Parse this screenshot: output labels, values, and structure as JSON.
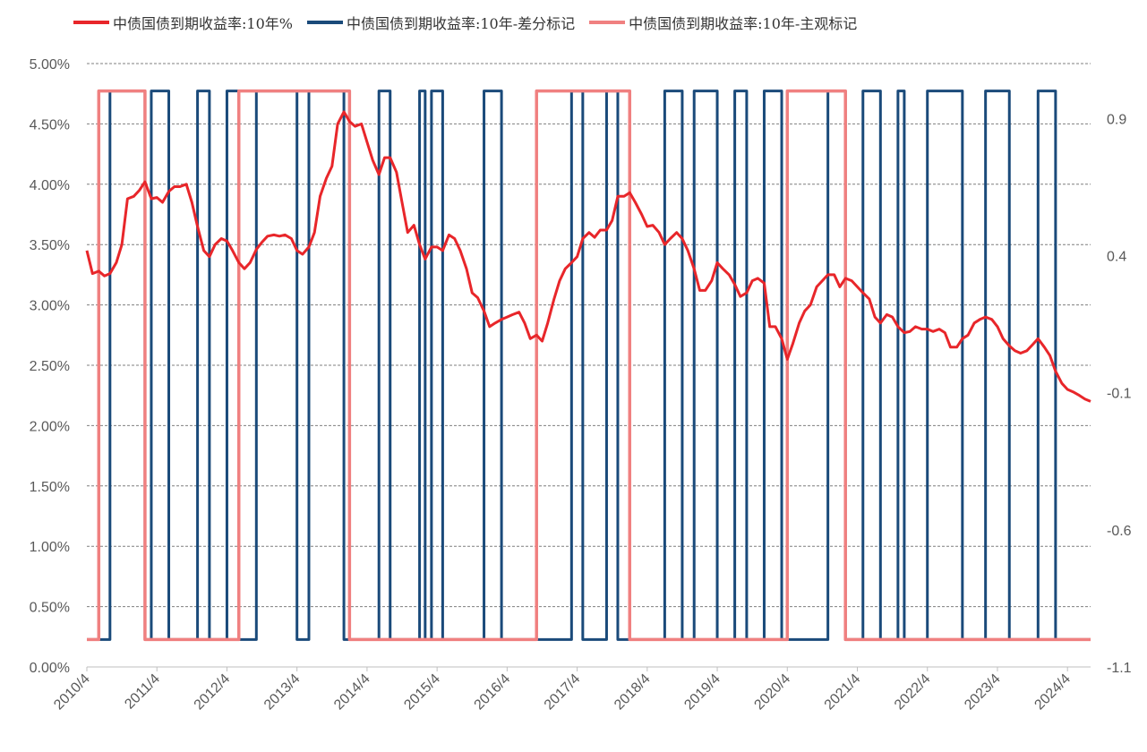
{
  "chart_data": {
    "type": "line",
    "title": "",
    "y_left": {
      "min": 0.0,
      "max": 5.0,
      "step": 0.5,
      "tick_labels": [
        "0.00%",
        "0.50%",
        "1.00%",
        "1.50%",
        "2.00%",
        "2.50%",
        "3.00%",
        "3.50%",
        "4.00%",
        "4.50%",
        "5.00%"
      ]
    },
    "y_right": {
      "min": -1.1,
      "max": 1.1,
      "step": 0.5,
      "tick_labels": [
        "-1.1",
        "-0.6",
        "-0.1",
        "0.4",
        "0.9"
      ]
    },
    "x_range": [
      2010.25,
      2024.58
    ],
    "x_tick_labels": [
      "2010/4",
      "2011/4",
      "2012/4",
      "2013/4",
      "2014/4",
      "2015/4",
      "2016/4",
      "2017/4",
      "2018/4",
      "2019/4",
      "2020/4",
      "2021/4",
      "2022/4",
      "2023/4",
      "2024/4"
    ],
    "series": [
      {
        "name": "中债国债到期收益率:10年%",
        "axis": "left",
        "color": "#e8262a",
        "points": [
          [
            2010.25,
            3.45
          ],
          [
            2010.33,
            3.26
          ],
          [
            2010.42,
            3.28
          ],
          [
            2010.5,
            3.24
          ],
          [
            2010.58,
            3.26
          ],
          [
            2010.67,
            3.35
          ],
          [
            2010.75,
            3.5
          ],
          [
            2010.83,
            3.88
          ],
          [
            2010.92,
            3.9
          ],
          [
            2011.0,
            3.95
          ],
          [
            2011.08,
            4.02
          ],
          [
            2011.17,
            3.88
          ],
          [
            2011.25,
            3.89
          ],
          [
            2011.33,
            3.85
          ],
          [
            2011.42,
            3.94
          ],
          [
            2011.5,
            3.98
          ],
          [
            2011.58,
            3.98
          ],
          [
            2011.67,
            4.0
          ],
          [
            2011.75,
            3.85
          ],
          [
            2011.83,
            3.65
          ],
          [
            2011.92,
            3.45
          ],
          [
            2012.0,
            3.4
          ],
          [
            2012.08,
            3.5
          ],
          [
            2012.17,
            3.55
          ],
          [
            2012.25,
            3.53
          ],
          [
            2012.33,
            3.45
          ],
          [
            2012.42,
            3.35
          ],
          [
            2012.5,
            3.3
          ],
          [
            2012.58,
            3.35
          ],
          [
            2012.67,
            3.46
          ],
          [
            2012.75,
            3.52
          ],
          [
            2012.83,
            3.57
          ],
          [
            2012.92,
            3.58
          ],
          [
            2013.0,
            3.57
          ],
          [
            2013.08,
            3.58
          ],
          [
            2013.17,
            3.55
          ],
          [
            2013.25,
            3.45
          ],
          [
            2013.33,
            3.42
          ],
          [
            2013.42,
            3.48
          ],
          [
            2013.5,
            3.6
          ],
          [
            2013.58,
            3.9
          ],
          [
            2013.67,
            4.05
          ],
          [
            2013.75,
            4.15
          ],
          [
            2013.83,
            4.5
          ],
          [
            2013.92,
            4.6
          ],
          [
            2014.0,
            4.52
          ],
          [
            2014.08,
            4.48
          ],
          [
            2014.17,
            4.5
          ],
          [
            2014.25,
            4.35
          ],
          [
            2014.33,
            4.2
          ],
          [
            2014.42,
            4.08
          ],
          [
            2014.5,
            4.22
          ],
          [
            2014.58,
            4.22
          ],
          [
            2014.67,
            4.1
          ],
          [
            2014.75,
            3.85
          ],
          [
            2014.83,
            3.6
          ],
          [
            2014.92,
            3.66
          ],
          [
            2015.0,
            3.5
          ],
          [
            2015.08,
            3.38
          ],
          [
            2015.17,
            3.48
          ],
          [
            2015.25,
            3.48
          ],
          [
            2015.33,
            3.45
          ],
          [
            2015.42,
            3.58
          ],
          [
            2015.5,
            3.55
          ],
          [
            2015.58,
            3.45
          ],
          [
            2015.67,
            3.3
          ],
          [
            2015.75,
            3.1
          ],
          [
            2015.83,
            3.06
          ],
          [
            2015.92,
            2.95
          ],
          [
            2016.0,
            2.82
          ],
          [
            2016.08,
            2.85
          ],
          [
            2016.17,
            2.88
          ],
          [
            2016.25,
            2.9
          ],
          [
            2016.33,
            2.92
          ],
          [
            2016.42,
            2.94
          ],
          [
            2016.5,
            2.85
          ],
          [
            2016.58,
            2.72
          ],
          [
            2016.67,
            2.75
          ],
          [
            2016.75,
            2.7
          ],
          [
            2016.83,
            2.85
          ],
          [
            2016.92,
            3.05
          ],
          [
            2017.0,
            3.2
          ],
          [
            2017.08,
            3.3
          ],
          [
            2017.17,
            3.35
          ],
          [
            2017.25,
            3.4
          ],
          [
            2017.33,
            3.55
          ],
          [
            2017.42,
            3.6
          ],
          [
            2017.5,
            3.56
          ],
          [
            2017.58,
            3.62
          ],
          [
            2017.67,
            3.62
          ],
          [
            2017.75,
            3.7
          ],
          [
            2017.83,
            3.9
          ],
          [
            2017.92,
            3.9
          ],
          [
            2018.0,
            3.93
          ],
          [
            2018.08,
            3.85
          ],
          [
            2018.17,
            3.75
          ],
          [
            2018.25,
            3.65
          ],
          [
            2018.33,
            3.66
          ],
          [
            2018.42,
            3.6
          ],
          [
            2018.5,
            3.5
          ],
          [
            2018.58,
            3.55
          ],
          [
            2018.67,
            3.6
          ],
          [
            2018.75,
            3.55
          ],
          [
            2018.83,
            3.45
          ],
          [
            2018.92,
            3.3
          ],
          [
            2019.0,
            3.12
          ],
          [
            2019.08,
            3.12
          ],
          [
            2019.17,
            3.2
          ],
          [
            2019.25,
            3.35
          ],
          [
            2019.33,
            3.3
          ],
          [
            2019.42,
            3.25
          ],
          [
            2019.5,
            3.17
          ],
          [
            2019.58,
            3.07
          ],
          [
            2019.67,
            3.1
          ],
          [
            2019.75,
            3.2
          ],
          [
            2019.83,
            3.22
          ],
          [
            2019.92,
            3.18
          ],
          [
            2020.0,
            2.82
          ],
          [
            2020.08,
            2.82
          ],
          [
            2020.17,
            2.72
          ],
          [
            2020.25,
            2.55
          ],
          [
            2020.33,
            2.68
          ],
          [
            2020.42,
            2.85
          ],
          [
            2020.5,
            2.95
          ],
          [
            2020.58,
            3.0
          ],
          [
            2020.67,
            3.15
          ],
          [
            2020.75,
            3.2
          ],
          [
            2020.83,
            3.25
          ],
          [
            2020.92,
            3.25
          ],
          [
            2021.0,
            3.15
          ],
          [
            2021.08,
            3.22
          ],
          [
            2021.17,
            3.2
          ],
          [
            2021.25,
            3.15
          ],
          [
            2021.33,
            3.1
          ],
          [
            2021.42,
            3.05
          ],
          [
            2021.5,
            2.9
          ],
          [
            2021.58,
            2.85
          ],
          [
            2021.67,
            2.92
          ],
          [
            2021.75,
            2.9
          ],
          [
            2021.83,
            2.82
          ],
          [
            2021.92,
            2.77
          ],
          [
            2022.0,
            2.78
          ],
          [
            2022.08,
            2.82
          ],
          [
            2022.17,
            2.8
          ],
          [
            2022.25,
            2.8
          ],
          [
            2022.33,
            2.78
          ],
          [
            2022.42,
            2.8
          ],
          [
            2022.5,
            2.77
          ],
          [
            2022.58,
            2.65
          ],
          [
            2022.67,
            2.65
          ],
          [
            2022.75,
            2.72
          ],
          [
            2022.83,
            2.75
          ],
          [
            2022.92,
            2.85
          ],
          [
            2023.0,
            2.88
          ],
          [
            2023.08,
            2.9
          ],
          [
            2023.17,
            2.88
          ],
          [
            2023.25,
            2.82
          ],
          [
            2023.33,
            2.72
          ],
          [
            2023.42,
            2.66
          ],
          [
            2023.5,
            2.62
          ],
          [
            2023.58,
            2.6
          ],
          [
            2023.67,
            2.62
          ],
          [
            2023.75,
            2.67
          ],
          [
            2023.83,
            2.72
          ],
          [
            2023.92,
            2.65
          ],
          [
            2024.0,
            2.58
          ],
          [
            2024.08,
            2.45
          ],
          [
            2024.17,
            2.35
          ],
          [
            2024.25,
            2.3
          ],
          [
            2024.33,
            2.28
          ],
          [
            2024.42,
            2.25
          ],
          [
            2024.5,
            2.22
          ],
          [
            2024.58,
            2.2
          ]
        ]
      },
      {
        "name": "中债国债到期收益率:10年-差分标记",
        "axis": "right",
        "color": "#1a4a7a",
        "steps": [
          [
            2010.25,
            -1
          ],
          [
            2010.58,
            1
          ],
          [
            2011.08,
            -1
          ],
          [
            2011.17,
            1
          ],
          [
            2011.42,
            -1
          ],
          [
            2011.83,
            1
          ],
          [
            2012.0,
            -1
          ],
          [
            2012.25,
            1
          ],
          [
            2012.42,
            -1
          ],
          [
            2012.67,
            1
          ],
          [
            2013.25,
            -1
          ],
          [
            2013.42,
            1
          ],
          [
            2013.92,
            -1
          ],
          [
            2014.42,
            1
          ],
          [
            2014.58,
            -1
          ],
          [
            2015.0,
            1
          ],
          [
            2015.08,
            -1
          ],
          [
            2015.17,
            1
          ],
          [
            2015.33,
            -1
          ],
          [
            2015.92,
            1
          ],
          [
            2016.17,
            -1
          ],
          [
            2017.17,
            1
          ],
          [
            2017.33,
            -1
          ],
          [
            2017.67,
            1
          ],
          [
            2017.83,
            -1
          ],
          [
            2018.5,
            1
          ],
          [
            2018.75,
            -1
          ],
          [
            2018.92,
            1
          ],
          [
            2019.25,
            -1
          ],
          [
            2019.5,
            1
          ],
          [
            2019.67,
            -1
          ],
          [
            2019.92,
            1
          ],
          [
            2020.17,
            -1
          ],
          [
            2020.83,
            1
          ],
          [
            2021.08,
            -1
          ],
          [
            2021.33,
            1
          ],
          [
            2021.58,
            -1
          ],
          [
            2021.83,
            1
          ],
          [
            2021.92,
            -1
          ],
          [
            2022.25,
            1
          ],
          [
            2022.75,
            -1
          ],
          [
            2023.08,
            1
          ],
          [
            2023.42,
            -1
          ],
          [
            2023.83,
            1
          ],
          [
            2024.08,
            -1
          ]
        ]
      },
      {
        "name": "中债国债到期收益率:10年-主观标记",
        "axis": "right",
        "color": "#f08080",
        "steps": [
          [
            2010.25,
            -1
          ],
          [
            2010.42,
            1
          ],
          [
            2011.08,
            -1
          ],
          [
            2012.42,
            1
          ],
          [
            2014.0,
            -1
          ],
          [
            2016.67,
            1
          ],
          [
            2018.0,
            -1
          ],
          [
            2020.25,
            1
          ],
          [
            2021.08,
            -1
          ]
        ]
      }
    ]
  }
}
